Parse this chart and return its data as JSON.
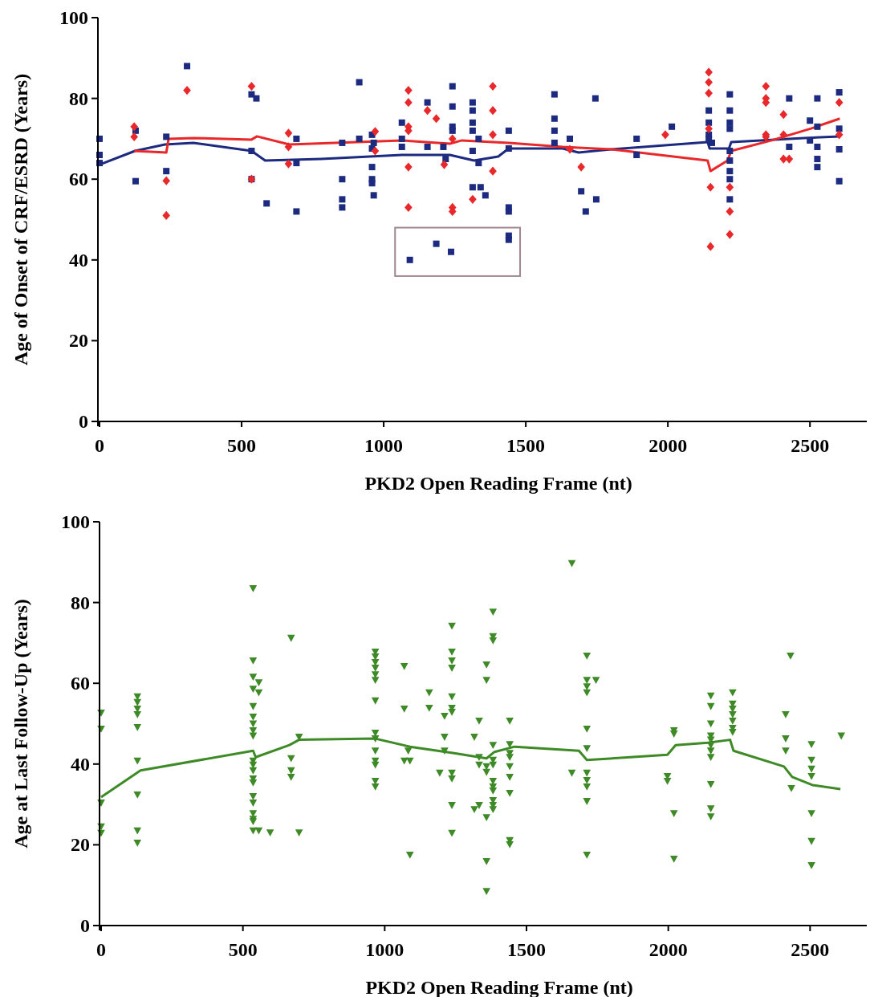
{
  "chart_data": [
    {
      "type": "scatter",
      "xlabel": "PKD2 Open Reading Frame (nt)",
      "ylabel": "Age of Onset of CRF/ESRD (Years)",
      "xlim": [
        0,
        2700
      ],
      "ylim": [
        0,
        100
      ],
      "xticks": [
        0,
        500,
        1000,
        1500,
        2000,
        2500
      ],
      "yticks": [
        0,
        20,
        40,
        60,
        80,
        100
      ],
      "series": [
        {
          "marker": "square",
          "color": "#1c2a80",
          "x": [
            0,
            0,
            0,
            127,
            127,
            235,
            235,
            308,
            535,
            552,
            535,
            535,
            588,
            693,
            693,
            693,
            854,
            854,
            854,
            854,
            914,
            914,
            959,
            959,
            959,
            959,
            959,
            965,
            965,
            1064,
            1064,
            1064,
            1092,
            1154,
            1154,
            1185,
            1210,
            1218,
            1242,
            1242,
            1242,
            1242,
            1237,
            1313,
            1313,
            1313,
            1313,
            1313,
            1313,
            1334,
            1334,
            1341,
            1358,
            1440,
            1440,
            1440,
            1440,
            1440,
            1440,
            1601,
            1601,
            1601,
            1601,
            1655,
            1695,
            1711,
            1748,
            1745,
            1890,
            1890,
            2014,
            2144,
            2144,
            2144,
            2144,
            2155,
            2218,
            2218,
            2218,
            2218,
            2218,
            2218,
            2218,
            2218,
            2218,
            2427,
            2427,
            2500,
            2526,
            2526,
            2500,
            2526,
            2526,
            2526,
            2603,
            2603,
            2603,
            2603
          ],
          "values": [
            70,
            66,
            64,
            72,
            59.5,
            70.5,
            62,
            88,
            81,
            80,
            67,
            60,
            54,
            70,
            64,
            52,
            69,
            60,
            55,
            53,
            84,
            70,
            71,
            67.6,
            63,
            60,
            59,
            56,
            69,
            74,
            70,
            68,
            40,
            79,
            68,
            44,
            68,
            65,
            83,
            78,
            73,
            72,
            42,
            79,
            77,
            74,
            72,
            67,
            58,
            70,
            64,
            58,
            56,
            72,
            67.6,
            53,
            52,
            46,
            45,
            81,
            75,
            72,
            69,
            70,
            57,
            52,
            55,
            80,
            70,
            66,
            73,
            77,
            74,
            71,
            70,
            69,
            81,
            77,
            74,
            72.5,
            67,
            64.6,
            62,
            60,
            55,
            80,
            68,
            74.5,
            80,
            73,
            69.6,
            68,
            65,
            63,
            81.5,
            72.5,
            67.4,
            59.5
          ]
        },
        {
          "marker": "diamond",
          "color": "#e8282a",
          "x": [
            122,
            122,
            235,
            235,
            308,
            535,
            535,
            665,
            665,
            665,
            970,
            970,
            1087,
            1087,
            1087,
            1087,
            1087,
            1087,
            1154,
            1185,
            1213,
            1242,
            1242,
            1242,
            1313,
            1384,
            1384,
            1384,
            1384,
            1655,
            1695,
            1991,
            2144,
            2144,
            2144,
            2144,
            2150,
            2150,
            2218,
            2218,
            2218,
            2345,
            2345,
            2345,
            2345,
            2345,
            2407,
            2407,
            2407,
            2427,
            2603,
            2603
          ],
          "values": [
            73,
            70.5,
            59.6,
            51,
            82,
            83,
            60,
            71.4,
            68,
            63.8,
            71.8,
            67,
            82,
            79,
            73,
            72,
            63,
            53,
            77,
            75,
            63.6,
            70,
            53,
            52,
            55,
            83,
            77,
            71,
            62,
            67.4,
            63,
            71,
            86.5,
            84,
            81.3,
            72.5,
            58,
            43.3,
            58,
            52,
            46.3,
            83,
            80,
            79,
            71,
            70.5,
            76,
            71,
            65,
            65,
            79,
            71
          ]
        },
        {
          "type": "line",
          "color": "#1c2a80",
          "x": [
            0,
            125,
            230,
            330,
            535,
            583,
            780,
            1064,
            1233,
            1318,
            1403,
            1440,
            1630,
            1686,
            1800,
            2140,
            2147,
            2215,
            2223,
            2478,
            2605
          ],
          "values": [
            63.6,
            67,
            68.6,
            69,
            67,
            64.6,
            65,
            66,
            66,
            64.6,
            65.6,
            67.6,
            67.6,
            66.6,
            67.4,
            69.2,
            67.6,
            67.6,
            69.2,
            70.2,
            70.6
          ]
        },
        {
          "type": "line",
          "color": "#e8282a",
          "x": [
            122,
            235,
            243,
            330,
            535,
            554,
            668,
            1064,
            1233,
            1275,
            1440,
            1630,
            1800,
            2140,
            2150,
            2210,
            2223,
            2365,
            2506,
            2605
          ],
          "values": [
            67,
            66.6,
            70,
            70.2,
            69.8,
            70.6,
            68.6,
            69.6,
            68.8,
            69.6,
            69,
            68,
            67.4,
            64.6,
            62,
            64.6,
            67,
            69.6,
            72.6,
            75
          ]
        }
      ]
    },
    {
      "type": "scatter",
      "xlabel": "PKD2 Open Reading Frame (nt)",
      "ylabel": "Age at Last Follow-Up (Years)",
      "xlim": [
        0,
        2700
      ],
      "ylim": [
        0,
        100
      ],
      "xticks": [
        0,
        500,
        1000,
        1500,
        2000,
        2500
      ],
      "yticks": [
        0,
        20,
        40,
        60,
        80,
        100
      ],
      "series": [
        {
          "marker": "triangle",
          "color": "#3d8a26",
          "x": [
            0,
            0,
            0,
            0,
            0,
            128,
            128,
            128,
            128,
            128,
            128,
            128,
            128,
            128,
            536,
            536,
            536,
            556,
            536,
            556,
            536,
            536,
            536,
            536,
            536,
            536,
            536,
            536,
            536,
            536,
            536,
            536,
            536,
            536,
            536,
            536,
            556,
            596,
            670,
            670,
            670,
            670,
            698,
            698,
            967,
            967,
            967,
            967,
            967,
            967,
            967,
            967,
            967,
            967,
            967,
            967,
            967,
            967,
            1069,
            1069,
            1069,
            1083,
            1089,
            1089,
            1157,
            1157,
            1194,
            1211,
            1211,
            1211,
            1237,
            1237,
            1237,
            1237,
            1237,
            1237,
            1237,
            1237,
            1237,
            1237,
            1237,
            1316,
            1316,
            1333,
            1333,
            1333,
            1333,
            1359,
            1359,
            1359,
            1359,
            1359,
            1359,
            1359,
            1382,
            1382,
            1382,
            1382,
            1382,
            1382,
            1382,
            1382,
            1382,
            1382,
            1382,
            1382,
            1441,
            1441,
            1441,
            1441,
            1441,
            1441,
            1441,
            1441,
            1441,
            1660,
            1660,
            1713,
            1713,
            1713,
            1713,
            1713,
            1713,
            1713,
            1713,
            1713,
            1713,
            1713,
            1745,
            1997,
            1997,
            2020,
            2020,
            2020,
            2020,
            2150,
            2150,
            2150,
            2150,
            2150,
            2150,
            2150,
            2150,
            2150,
            2150,
            2150,
            2227,
            2227,
            2227,
            2227,
            2227,
            2227,
            2227,
            2431,
            2414,
            2414,
            2414,
            2434,
            2505,
            2505,
            2505,
            2505,
            2505,
            2505,
            2505,
            2610
          ],
          "values": [
            52.7,
            48.7,
            30.4,
            24.5,
            22.9,
            56.7,
            55.3,
            53.7,
            52.3,
            49.1,
            40.8,
            32.4,
            23.5,
            20.5,
            83.5,
            65.6,
            61.6,
            60.2,
            58.6,
            57.7,
            54.3,
            51.7,
            50,
            48.3,
            47,
            40.8,
            39.8,
            38.4,
            36.4,
            35.4,
            32,
            30.4,
            27.8,
            26.4,
            25.8,
            23.5,
            23.5,
            23,
            71.2,
            41.4,
            38.4,
            36.8,
            46.7,
            23,
            67.8,
            66.6,
            65.2,
            63.8,
            62.2,
            60.8,
            55.7,
            47.7,
            46.3,
            43.3,
            40.8,
            39.8,
            35.8,
            34.4,
            64.2,
            53.7,
            40.8,
            43.3,
            40.8,
            17.5,
            57.7,
            53.9,
            37.8,
            51.9,
            46.7,
            43.3,
            74.2,
            67.8,
            65.6,
            63.8,
            56.7,
            53.9,
            52.9,
            37.8,
            36.4,
            29.8,
            22.9,
            46.7,
            28.8,
            50.7,
            41.7,
            39.8,
            29.8,
            64.6,
            60.8,
            39.4,
            38,
            26.8,
            15.9,
            8.5,
            77.7,
            71.6,
            70.6,
            44.7,
            41,
            39.8,
            35.8,
            34.4,
            33.4,
            31,
            29.8,
            28.8,
            50.7,
            44.9,
            42.7,
            41.7,
            39.4,
            36.8,
            32.8,
            21.1,
            20.1,
            89.7,
            37.8,
            66.8,
            60.8,
            59.2,
            57.7,
            48.7,
            43.9,
            37.8,
            36,
            34.4,
            30.8,
            17.5,
            60.8,
            37,
            35.8,
            48.3,
            47.5,
            27.8,
            16.5,
            56.9,
            54.3,
            50,
            47,
            46,
            44.7,
            43.3,
            41.7,
            35,
            29,
            27,
            57.7,
            54.9,
            53.7,
            52.3,
            50.7,
            48.9,
            47.9,
            66.8,
            52.3,
            46.3,
            43.3,
            34,
            44.9,
            41,
            38.8,
            37,
            27.8,
            20.9,
            14.9,
            47
          ]
        },
        {
          "type": "line",
          "color": "#3d8a26",
          "x": [
            0,
            139,
            536,
            545,
            664,
            698,
            967,
            1089,
            1245,
            1359,
            1387,
            1458,
            1685,
            1713,
            1997,
            2026,
            2139,
            2218,
            2230,
            2408,
            2437,
            2508,
            2607
          ],
          "values": [
            31.8,
            38.4,
            43.3,
            41.7,
            44.7,
            46,
            46.3,
            44.3,
            42.7,
            41.4,
            43,
            44.3,
            43.3,
            41,
            42.3,
            44.7,
            45.3,
            46,
            43.3,
            39.4,
            36.8,
            34.8,
            33.8
          ]
        }
      ]
    }
  ]
}
